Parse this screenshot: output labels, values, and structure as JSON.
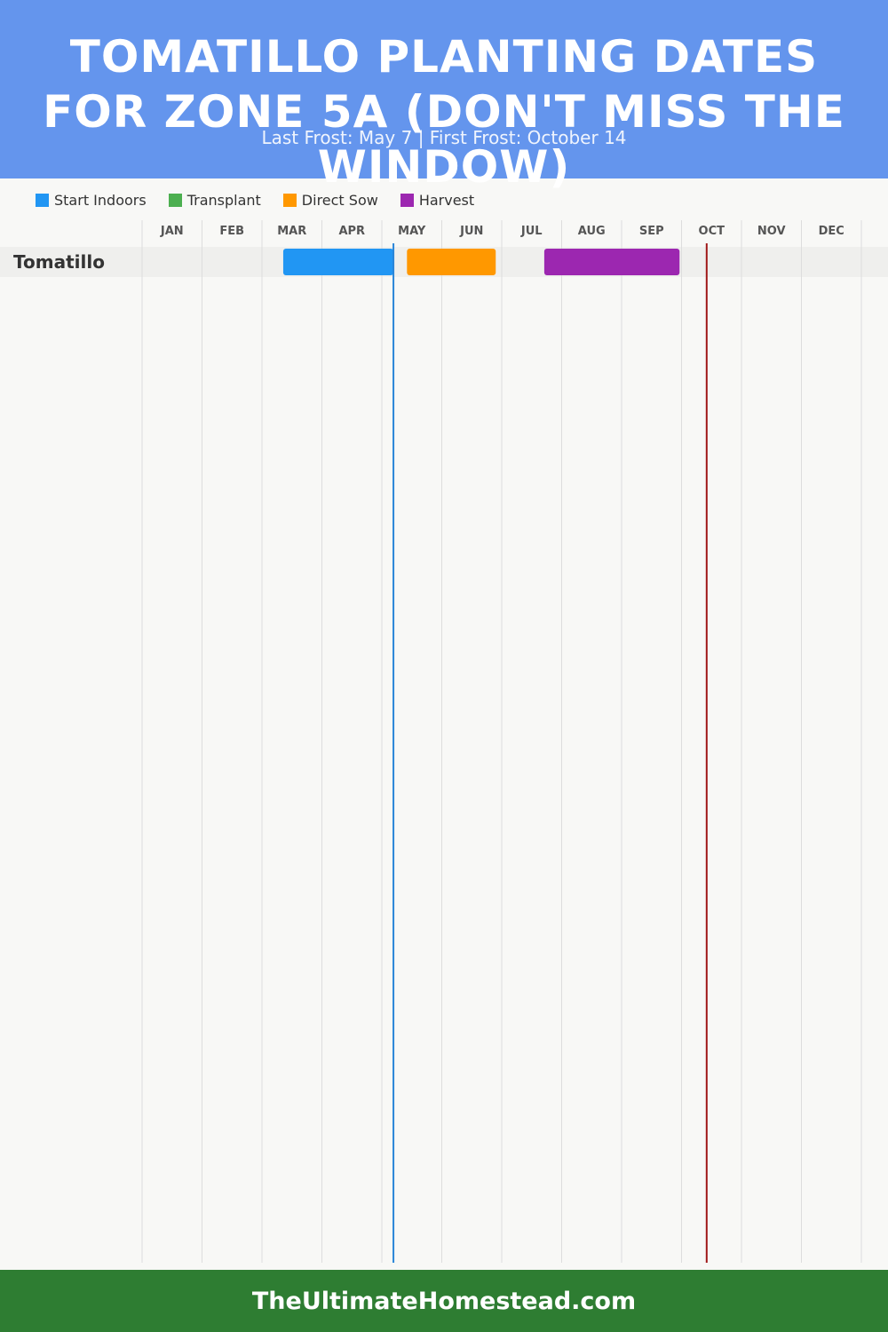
{
  "header": {
    "title": "TOMATILLO PLANTING DATES FOR ZONE 5A (DON'T MISS THE WINDOW)",
    "subtitle": "Last Frost: May 7 | First Frost: October 14",
    "background": "#6495ed"
  },
  "legend": [
    {
      "label": "Start Indoors",
      "color": "#2196f3"
    },
    {
      "label": "Transplant",
      "color": "#4caf50"
    },
    {
      "label": "Direct Sow",
      "color": "#ff9800"
    },
    {
      "label": "Harvest",
      "color": "#9c27b0"
    }
  ],
  "chart_data": {
    "type": "gantt",
    "months": [
      "JAN",
      "FEB",
      "MAR",
      "APR",
      "MAY",
      "JUN",
      "JUL",
      "AUG",
      "SEP",
      "OCT",
      "NOV",
      "DEC"
    ],
    "rows": [
      {
        "name": "Tomatillo",
        "bars": [
          {
            "phase": "Start Indoors",
            "start": "03-12",
            "end": "05-07",
            "color": "#2196f3"
          },
          {
            "phase": "Direct Sow",
            "start": "05-14",
            "end": "06-28",
            "color": "#ff9800"
          },
          {
            "phase": "Harvest",
            "start": "07-23",
            "end": "09-30",
            "color": "#9c27b0"
          }
        ]
      }
    ],
    "markers": [
      {
        "date": "05-07",
        "color": "#2a86d8"
      },
      {
        "date": "10-14",
        "color": "#a01818"
      }
    ],
    "grid": true
  },
  "footer": {
    "text": "TheUltimateHomestead.com",
    "background": "#2e7d32"
  }
}
